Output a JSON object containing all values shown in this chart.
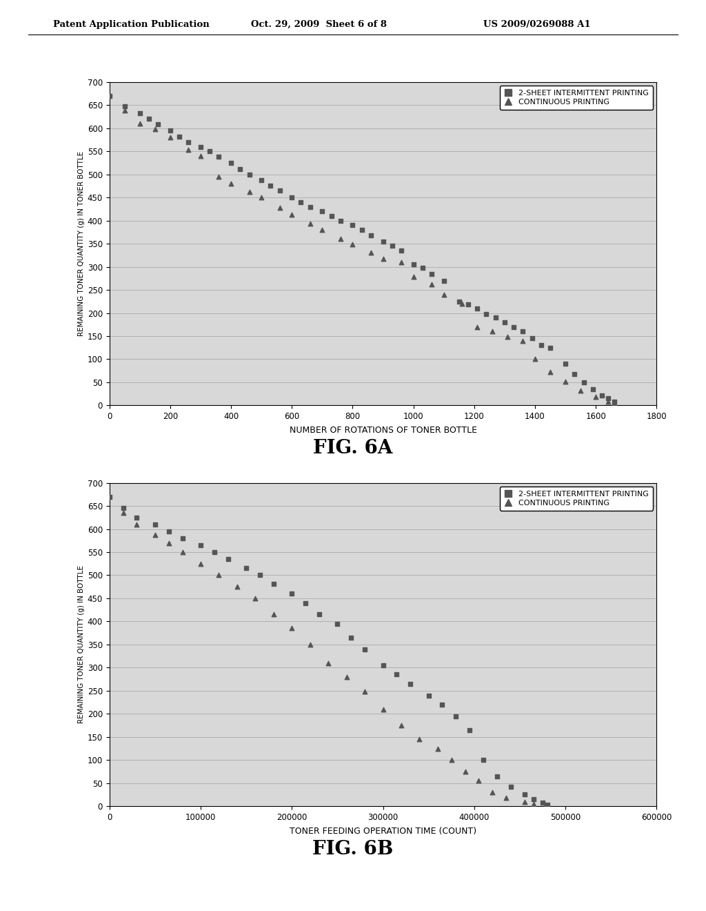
{
  "fig6a": {
    "xlabel": "NUMBER OF ROTATIONS OF TONER BOTTLE",
    "ylabel": "REMAINING TONER QUANTITY (g) IN TONER BOTTLE",
    "xlim": [
      0,
      1800
    ],
    "ylim": [
      0,
      700
    ],
    "xticks": [
      0,
      200,
      400,
      600,
      800,
      1000,
      1200,
      1400,
      1600,
      1800
    ],
    "yticks": [
      0,
      50,
      100,
      150,
      200,
      250,
      300,
      350,
      400,
      450,
      500,
      550,
      600,
      650,
      700
    ],
    "intermittent_x": [
      0,
      50,
      100,
      130,
      160,
      200,
      230,
      260,
      300,
      330,
      360,
      400,
      430,
      460,
      500,
      530,
      560,
      600,
      630,
      660,
      700,
      730,
      760,
      800,
      830,
      860,
      900,
      930,
      960,
      1000,
      1030,
      1060,
      1100,
      1150,
      1180,
      1210,
      1240,
      1270,
      1300,
      1330,
      1360,
      1390,
      1420,
      1450,
      1500,
      1530,
      1560,
      1590,
      1620,
      1640,
      1660
    ],
    "intermittent_y": [
      670,
      648,
      633,
      620,
      608,
      595,
      582,
      570,
      560,
      550,
      538,
      525,
      512,
      500,
      488,
      476,
      465,
      450,
      440,
      430,
      420,
      410,
      400,
      390,
      380,
      368,
      355,
      345,
      335,
      305,
      298,
      285,
      270,
      225,
      218,
      210,
      198,
      190,
      180,
      170,
      160,
      145,
      130,
      125,
      90,
      68,
      50,
      35,
      22,
      15,
      8
    ],
    "continuous_x": [
      50,
      100,
      150,
      200,
      260,
      300,
      360,
      400,
      460,
      500,
      560,
      600,
      660,
      700,
      760,
      800,
      860,
      900,
      960,
      1000,
      1060,
      1100,
      1160,
      1210,
      1260,
      1310,
      1360,
      1400,
      1450,
      1500,
      1550,
      1600,
      1640,
      1660
    ],
    "continuous_y": [
      638,
      610,
      598,
      580,
      553,
      540,
      495,
      480,
      462,
      450,
      428,
      413,
      393,
      380,
      360,
      348,
      330,
      318,
      310,
      278,
      262,
      240,
      220,
      170,
      160,
      148,
      140,
      100,
      72,
      52,
      32,
      18,
      8,
      5
    ]
  },
  "fig6b": {
    "xlabel": "TONER FEEDING OPERATION TIME (COUNT)",
    "ylabel": "REMAINING TONER QUANTITY (g) IN BOTTLE",
    "xlim": [
      0,
      600000
    ],
    "ylim": [
      0,
      700
    ],
    "xticks": [
      0,
      100000,
      200000,
      300000,
      400000,
      500000,
      600000
    ],
    "yticks": [
      0,
      50,
      100,
      150,
      200,
      250,
      300,
      350,
      400,
      450,
      500,
      550,
      600,
      650,
      700
    ],
    "intermittent_x": [
      0,
      15000,
      30000,
      50000,
      65000,
      80000,
      100000,
      115000,
      130000,
      150000,
      165000,
      180000,
      200000,
      215000,
      230000,
      250000,
      265000,
      280000,
      300000,
      315000,
      330000,
      350000,
      365000,
      380000,
      395000,
      410000,
      425000,
      440000,
      455000,
      465000,
      475000,
      480000
    ],
    "intermittent_y": [
      670,
      645,
      625,
      610,
      595,
      580,
      565,
      550,
      535,
      515,
      500,
      482,
      460,
      440,
      415,
      395,
      365,
      340,
      305,
      285,
      265,
      240,
      220,
      195,
      165,
      100,
      65,
      42,
      25,
      15,
      8,
      3
    ],
    "continuous_x": [
      15000,
      30000,
      50000,
      65000,
      80000,
      100000,
      120000,
      140000,
      160000,
      180000,
      200000,
      220000,
      240000,
      260000,
      280000,
      300000,
      320000,
      340000,
      360000,
      375000,
      390000,
      405000,
      420000,
      435000,
      455000,
      465000,
      478000
    ],
    "continuous_y": [
      635,
      610,
      587,
      570,
      550,
      525,
      500,
      475,
      450,
      415,
      385,
      350,
      310,
      280,
      248,
      210,
      175,
      145,
      125,
      100,
      75,
      55,
      30,
      18,
      10,
      5,
      2
    ]
  },
  "legend_labels": [
    "2-SHEET INTERMITTENT PRINTING",
    "CONTINUOUS PRINTING"
  ],
  "header_left": "Patent Application Publication",
  "header_mid": "Oct. 29, 2009  Sheet 6 of 8",
  "header_right": "US 2009/0269088 A1",
  "fig6a_label": "FIG. 6A",
  "fig6b_label": "FIG. 6B",
  "bg_color": "#ffffff",
  "plot_bg_color": "#d8d8d8",
  "marker_color": "#555555",
  "grid_color": "#aaaaaa"
}
